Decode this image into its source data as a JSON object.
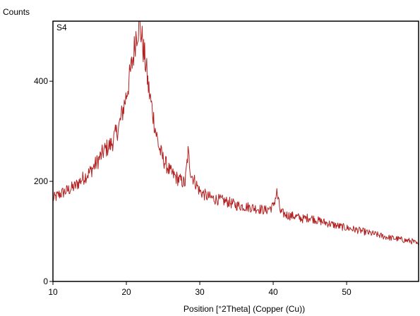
{
  "chart_data": {
    "type": "line",
    "title": "",
    "ylabel": "Counts",
    "xlabel": "Position [°2Theta] (Copper (Cu))",
    "panel_label": "S4",
    "xlim": [
      10,
      59.8
    ],
    "ylim": [
      0,
      520
    ],
    "x_ticks": [
      10,
      20,
      30,
      40,
      50
    ],
    "y_ticks": [
      0,
      200,
      400
    ],
    "grid": false,
    "legend": "none",
    "line_color": "#b22222",
    "series": [
      {
        "x": [
          10,
          11,
          12,
          13,
          14,
          15,
          16,
          17,
          18,
          19,
          19.5,
          20,
          20.5,
          21,
          21.3,
          21.7,
          22,
          22.3,
          22.7,
          23,
          23.5,
          24,
          24.5,
          25,
          26,
          27,
          28,
          28.4,
          28.8,
          29.5,
          30,
          31,
          32,
          33,
          34,
          35,
          36,
          37,
          38,
          39,
          40,
          40.5,
          41,
          42,
          43,
          44,
          45,
          46,
          47,
          48,
          49,
          50,
          51,
          52,
          53,
          54,
          55,
          56,
          57,
          58,
          59,
          59.8
        ],
        "y": [
          165,
          175,
          182,
          190,
          205,
          218,
          238,
          262,
          275,
          310,
          340,
          372,
          412,
          455,
          492,
          512,
          498,
          465,
          428,
          388,
          345,
          300,
          265,
          245,
          218,
          205,
          196,
          258,
          215,
          195,
          180,
          170,
          165,
          162,
          158,
          152,
          150,
          148,
          145,
          142,
          150,
          178,
          138,
          132,
          130,
          125,
          128,
          122,
          118,
          114,
          110,
          107,
          104,
          101,
          97,
          94,
          90,
          87,
          85,
          82,
          80,
          72
        ]
      }
    ]
  }
}
